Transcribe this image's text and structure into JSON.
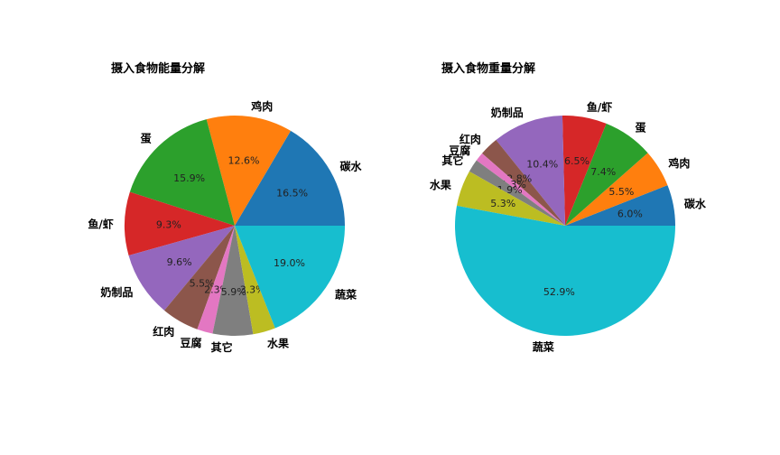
{
  "chart_data": [
    {
      "type": "pie",
      "title": "摄入食物能量分解",
      "categories": [
        "碳水",
        "鸡肉",
        "蛋",
        "鱼/虾",
        "奶制品",
        "红肉",
        "豆腐",
        "其它",
        "水果",
        "蔬菜"
      ],
      "values": [
        16.5,
        12.6,
        15.9,
        9.3,
        9.6,
        5.5,
        2.3,
        5.9,
        3.3,
        19.0
      ],
      "labels_pct": [
        "16.5%",
        "12.6%",
        "15.9%",
        "9.3%",
        "9.6%",
        "5.5%",
        "2.3%",
        "5.9%",
        "3.3%",
        "19.0%"
      ],
      "start_angle": 0,
      "direction": "counterclockwise"
    },
    {
      "type": "pie",
      "title": "摄入食物重量分解",
      "categories": [
        "碳水",
        "鸡肉",
        "蛋",
        "鱼/虾",
        "奶制品",
        "红肉",
        "豆腐",
        "其它",
        "水果",
        "蔬菜"
      ],
      "values": [
        6.0,
        5.5,
        7.4,
        6.5,
        10.4,
        2.8,
        1.3,
        1.9,
        5.3,
        52.9
      ],
      "labels_pct": [
        "6.0%",
        "5.5%",
        "7.4%",
        "6.5%",
        "10.4%",
        "2.8%",
        "1.3%",
        "1.9%",
        "5.3%",
        "52.9%"
      ],
      "start_angle": 0,
      "direction": "counterclockwise"
    }
  ],
  "colors": [
    "#1f77b4",
    "#ff7f0e",
    "#2ca02c",
    "#d62728",
    "#9467bd",
    "#8c564b",
    "#e377c2",
    "#7f7f7f",
    "#bcbd22",
    "#17becf"
  ],
  "titles": {
    "left": "摄入食物能量分解",
    "right": "摄入食物重量分解"
  }
}
